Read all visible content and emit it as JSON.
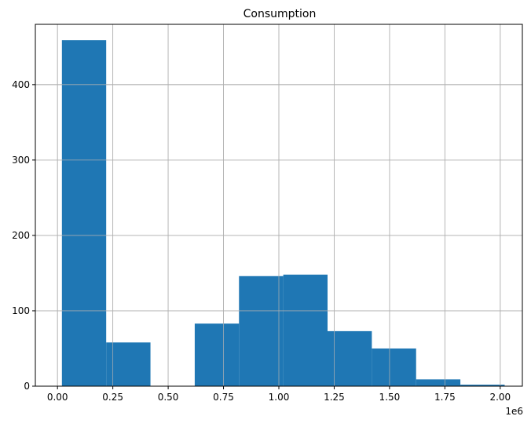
{
  "chart_data": {
    "type": "bar",
    "title": "Consumption",
    "xlabel": "",
    "ylabel": "",
    "x_offset_label": "1e6",
    "xlim": [
      -0.1,
      2.1
    ],
    "ylim": [
      0,
      480
    ],
    "x_ticks": [
      0.0,
      0.25,
      0.5,
      0.75,
      1.0,
      1.25,
      1.5,
      1.75,
      2.0
    ],
    "x_tick_labels": [
      "0.00",
      "0.25",
      "0.50",
      "0.75",
      "1.00",
      "1.25",
      "1.50",
      "1.75",
      "2.00"
    ],
    "y_ticks": [
      0,
      100,
      200,
      300,
      400
    ],
    "y_tick_labels": [
      "0",
      "100",
      "200",
      "300",
      "400"
    ],
    "grid": true,
    "bar_color": "#1f77b4",
    "bins": [
      {
        "x0": 0.02,
        "x1": 0.22,
        "value": 459
      },
      {
        "x0": 0.22,
        "x1": 0.42,
        "value": 58
      },
      {
        "x0": 0.42,
        "x1": 0.62,
        "value": 0
      },
      {
        "x0": 0.62,
        "x1": 0.82,
        "value": 83
      },
      {
        "x0": 0.82,
        "x1": 1.02,
        "value": 146
      },
      {
        "x0": 1.02,
        "x1": 1.22,
        "value": 148
      },
      {
        "x0": 1.22,
        "x1": 1.42,
        "value": 73
      },
      {
        "x0": 1.42,
        "x1": 1.62,
        "value": 50
      },
      {
        "x0": 1.62,
        "x1": 1.82,
        "value": 9
      },
      {
        "x0": 1.82,
        "x1": 2.02,
        "value": 2
      }
    ]
  }
}
